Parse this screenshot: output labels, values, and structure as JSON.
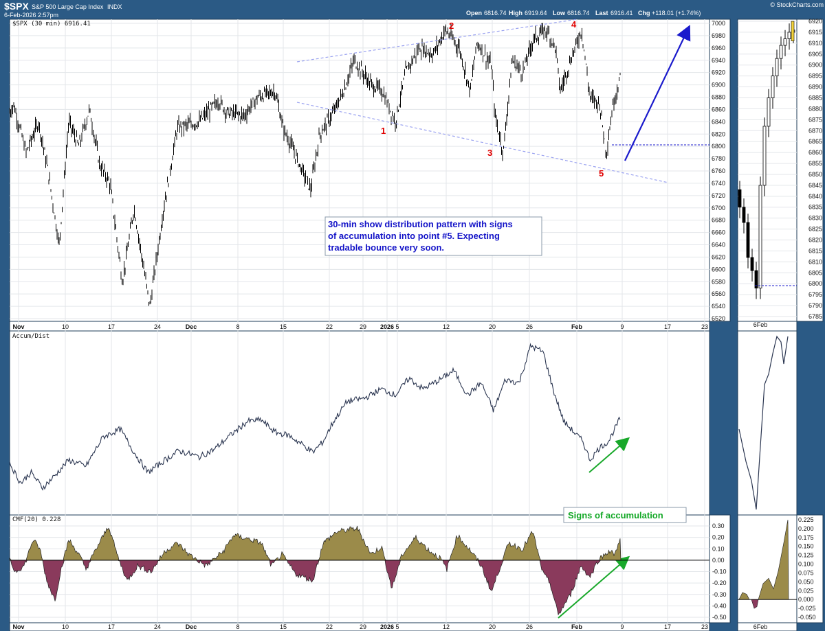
{
  "header": {
    "symbol": "$SPX",
    "name": "S&P 500 Large Cap Index",
    "exchange": "INDX",
    "date": "6-Feb-2026 2:57pm",
    "brand": "© StockCharts.com",
    "open_label": "Open",
    "open": "6816.74",
    "high_label": "High",
    "high": "6919.64",
    "low_label": "Low",
    "low": "6816.74",
    "last_label": "Last",
    "last": "6916.41",
    "chg_label": "Chg",
    "chg": "+118.01 (+1.74%)"
  },
  "price_pane": {
    "legend": "$SPX (30 min) 6916.41",
    "y_ticks": [
      6520,
      6540,
      6560,
      6580,
      6600,
      6620,
      6640,
      6660,
      6680,
      6700,
      6720,
      6740,
      6760,
      6780,
      6800,
      6820,
      6840,
      6860,
      6880,
      6900,
      6920,
      6940,
      6960,
      6980,
      7000
    ],
    "point_labels": [
      "1",
      "2",
      "3",
      "4",
      "5"
    ],
    "note": [
      "30-min show distribution pattern with signs",
      "of accumulation into point #5. Expecting",
      "tradable bounce very soon."
    ],
    "support_level": 6800
  },
  "x_axis": {
    "labels": [
      "Nov",
      "10",
      "17",
      "24",
      "Dec",
      "8",
      "15",
      "22",
      "29",
      "2026",
      "5",
      "12",
      "20",
      "26",
      "Feb",
      "9",
      "17",
      "23"
    ],
    "bold": [
      "Nov",
      "Dec",
      "2026",
      "Feb"
    ]
  },
  "side_price": {
    "y_ticks": [
      6785,
      6790,
      6795,
      6800,
      6805,
      6810,
      6815,
      6820,
      6825,
      6830,
      6835,
      6840,
      6845,
      6850,
      6855,
      6860,
      6865,
      6870,
      6875,
      6880,
      6885,
      6890,
      6895,
      6900,
      6905,
      6910,
      6915,
      6920
    ],
    "x_label": "6Feb",
    "support_level": 6798
  },
  "accum_pane": {
    "legend": "Accum/Dist",
    "annotation": "Signs of accumulation"
  },
  "cmf_pane": {
    "legend": "CMF(20) 0.228",
    "y_ticks": [
      "0.30",
      "0.20",
      "0.10",
      "0.00",
      "-0.10",
      "-0.20",
      "-0.30",
      "-0.40",
      "-0.50"
    ]
  },
  "side_cmf": {
    "y_ticks": [
      "0.225",
      "0.200",
      "0.175",
      "0.150",
      "0.125",
      "0.100",
      "0.075",
      "0.050",
      "0.025",
      "0.000",
      "-0.025",
      "-0.050"
    ],
    "x_label": "6Feb"
  },
  "colors": {
    "background": "#2b5a85",
    "trend": "#9aa2f0",
    "arrow_blue": "#1a1acc",
    "arrow_green": "#18a82a",
    "cmf_pos": "#9b8b4a",
    "cmf_neg": "#8a3a5c",
    "price": "#000000"
  },
  "chart_data": [
    {
      "type": "line",
      "title": "$SPX (30 min) 6916.41",
      "ylim": [
        6520,
        7000
      ],
      "x": [
        "Nov",
        "10",
        "17",
        "24",
        "Dec",
        "8",
        "15",
        "22",
        "29",
        "2026",
        "5",
        "12",
        "20",
        "26",
        "Feb",
        "9"
      ],
      "series": [
        {
          "name": "$SPX",
          "values": [
            6840,
            6720,
            6640,
            6540,
            6850,
            6860,
            6720,
            6850,
            6940,
            6840,
            6980,
            6880,
            6790,
            6990,
            6790,
            6916
          ]
        }
      ]
    },
    {
      "type": "line",
      "title": "Accum/Dist",
      "series": [
        {
          "name": "Accum/Dist",
          "values": [
            0.2,
            0.1,
            0.45,
            0.28,
            0.38,
            0.55,
            0.42,
            0.62,
            0.7,
            0.74,
            0.78,
            0.82,
            0.55,
            0.92,
            0.35,
            0.48
          ]
        }
      ]
    },
    {
      "type": "area",
      "title": "CMF(20) 0.228",
      "ylim": [
        -0.5,
        0.33
      ],
      "series": [
        {
          "name": "CMF(20)",
          "values": [
            0.08,
            -0.15,
            0.25,
            -0.18,
            0.12,
            0.18,
            0.05,
            -0.12,
            0.28,
            -0.1,
            0.14,
            0.2,
            -0.25,
            0.22,
            -0.45,
            0.228
          ]
        }
      ]
    }
  ]
}
